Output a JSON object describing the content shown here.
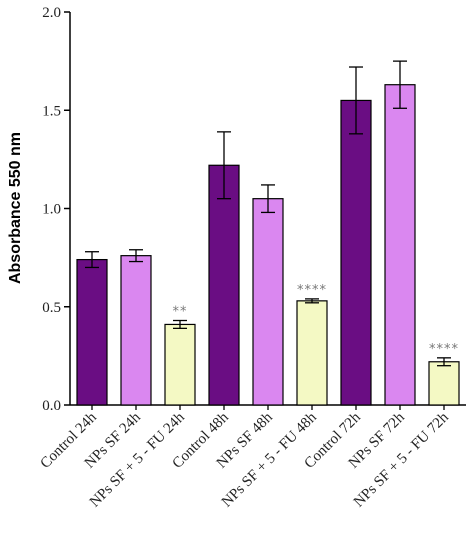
{
  "chart_data": {
    "type": "bar",
    "title": "",
    "xlabel": "",
    "ylabel": "Absorbance 550 nm",
    "ylim": [
      0,
      2.0
    ],
    "yticks": [
      0.0,
      0.5,
      1.0,
      1.5,
      2.0
    ],
    "ytick_labels": [
      "0.0",
      "0.5",
      "1.0",
      "1.5",
      "2.0"
    ],
    "grid": false,
    "categories": [
      "Control 24h",
      "NPs SF 24h",
      "NPs SF + 5 - FU 24h",
      "Control 48h",
      "NPs SF 48h",
      "NPs SF + 5 - FU 48h",
      "Control 72h",
      "NPs SF 72h",
      "NPs SF + 5 - FU 72h"
    ],
    "values": [
      0.74,
      0.76,
      0.41,
      1.22,
      1.05,
      0.53,
      1.55,
      1.63,
      0.22
    ],
    "errors": [
      0.04,
      0.03,
      0.02,
      0.17,
      0.07,
      0.01,
      0.17,
      0.12,
      0.02
    ],
    "significance": [
      "",
      "",
      "**",
      "",
      "",
      "****",
      "",
      "",
      "****"
    ],
    "bar_colors": [
      "#6a0d83",
      "#da87f0",
      "#f4f9c4",
      "#6a0d83",
      "#da87f0",
      "#f4f9c4",
      "#6a0d83",
      "#da87f0",
      "#f4f9c4"
    ]
  }
}
